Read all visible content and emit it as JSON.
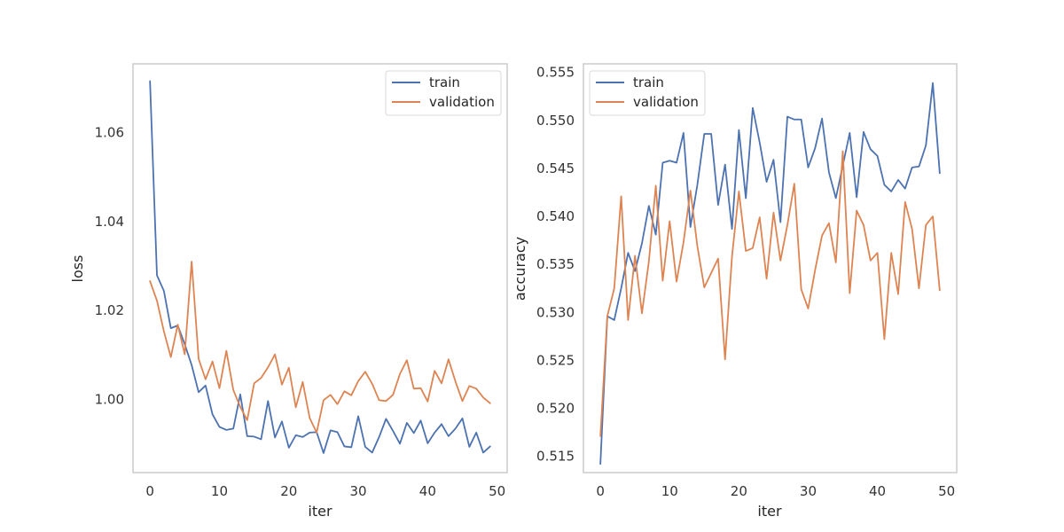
{
  "colors": {
    "train": "#4c72b0",
    "validation": "#dd8452",
    "frame": "#cccccc"
  },
  "chart_data": [
    {
      "type": "line",
      "title": "",
      "xlabel": "iter",
      "ylabel": "loss",
      "xlim": [
        -2.45,
        51.45
      ],
      "ylim": [
        0.9835,
        1.0755
      ],
      "xticks": [
        0,
        10,
        20,
        30,
        40,
        50
      ],
      "yticks": [
        1.0,
        1.02,
        1.04,
        1.06
      ],
      "ytick_labels": [
        "1.00",
        "1.02",
        "1.04",
        "1.06"
      ],
      "grid": false,
      "legend_position": "top-right",
      "legend": [
        "train",
        "validation"
      ],
      "x": [
        0,
        1,
        2,
        3,
        4,
        5,
        6,
        7,
        8,
        9,
        10,
        11,
        12,
        13,
        14,
        15,
        16,
        17,
        18,
        19,
        20,
        21,
        22,
        23,
        24,
        25,
        26,
        27,
        28,
        29,
        30,
        31,
        32,
        33,
        34,
        35,
        36,
        37,
        38,
        39,
        40,
        41,
        42,
        43,
        44,
        45,
        46,
        47,
        48,
        49
      ],
      "series": [
        {
          "name": "train",
          "color": "#4c72b0",
          "values": [
            1.0716,
            1.0279,
            1.0244,
            1.016,
            1.0166,
            1.0124,
            1.0077,
            1.0016,
            1.0031,
            0.9966,
            0.9938,
            0.9931,
            0.9934,
            1.0011,
            0.9917,
            0.9916,
            0.991,
            0.9996,
            0.9914,
            0.995,
            0.9891,
            0.9919,
            0.9915,
            0.9925,
            0.9926,
            0.9879,
            0.993,
            0.9926,
            0.9894,
            0.9892,
            0.9962,
            0.9893,
            0.988,
            0.9915,
            0.9956,
            0.9929,
            0.99,
            0.9947,
            0.9924,
            0.9952,
            0.9901,
            0.9925,
            0.9944,
            0.9917,
            0.9934,
            0.9957,
            0.9893,
            0.9925,
            0.988,
            0.9894
          ]
        },
        {
          "name": "validation",
          "color": "#dd8452",
          "values": [
            1.0266,
            1.0222,
            1.0153,
            1.0095,
            1.0168,
            1.0101,
            1.031,
            1.0091,
            1.0045,
            1.0085,
            1.0025,
            1.0109,
            1.0021,
            0.9983,
            0.9953,
            1.0036,
            1.0048,
            1.0072,
            1.0101,
            1.0033,
            1.0071,
            0.9982,
            1.0039,
            0.9958,
            0.9925,
            0.9998,
            1.001,
            0.9989,
            1.0018,
            1.0009,
            1.0041,
            1.0062,
            1.0035,
            0.9998,
            0.9996,
            1.001,
            1.0057,
            1.0088,
            1.0024,
            1.0025,
            0.9995,
            1.0064,
            1.0036,
            1.009,
            1.004,
            0.9996,
            1.003,
            1.0024,
            1.0004,
            0.9991
          ]
        }
      ]
    },
    {
      "type": "line",
      "title": "",
      "xlabel": "iter",
      "ylabel": "accuracy",
      "xlim": [
        -2.45,
        51.45
      ],
      "ylim": [
        0.5133,
        0.5559
      ],
      "xticks": [
        0,
        10,
        20,
        30,
        40,
        50
      ],
      "yticks": [
        0.515,
        0.52,
        0.525,
        0.53,
        0.535,
        0.54,
        0.545,
        0.55,
        0.555
      ],
      "ytick_labels": [
        "0.515",
        "0.520",
        "0.525",
        "0.530",
        "0.535",
        "0.540",
        "0.545",
        "0.550",
        "0.555"
      ],
      "grid": false,
      "legend_position": "top-left",
      "legend": [
        "train",
        "validation"
      ],
      "x": [
        0,
        1,
        2,
        3,
        4,
        5,
        6,
        7,
        8,
        9,
        10,
        11,
        12,
        13,
        14,
        15,
        16,
        17,
        18,
        19,
        20,
        21,
        22,
        23,
        24,
        25,
        26,
        27,
        28,
        29,
        30,
        31,
        32,
        33,
        34,
        35,
        36,
        37,
        38,
        39,
        40,
        41,
        42,
        43,
        44,
        45,
        46,
        47,
        48,
        49
      ],
      "series": [
        {
          "name": "train",
          "color": "#4c72b0",
          "values": [
            0.5142,
            0.5296,
            0.5292,
            0.5325,
            0.5362,
            0.5343,
            0.5372,
            0.5411,
            0.5381,
            0.5456,
            0.5458,
            0.5456,
            0.5487,
            0.5389,
            0.5433,
            0.5486,
            0.5486,
            0.5412,
            0.5454,
            0.5387,
            0.549,
            0.5419,
            0.5513,
            0.5477,
            0.5436,
            0.5459,
            0.5394,
            0.5504,
            0.5501,
            0.5501,
            0.5451,
            0.5471,
            0.5502,
            0.5446,
            0.5419,
            0.5453,
            0.5487,
            0.542,
            0.5488,
            0.547,
            0.5463,
            0.5433,
            0.5426,
            0.5438,
            0.5429,
            0.5451,
            0.5452,
            0.5474,
            0.5539,
            0.5445
          ]
        },
        {
          "name": "validation",
          "color": "#dd8452",
          "values": [
            0.5171,
            0.5296,
            0.5325,
            0.5421,
            0.5292,
            0.5359,
            0.5299,
            0.5353,
            0.5432,
            0.5333,
            0.5395,
            0.5332,
            0.5373,
            0.5427,
            0.5369,
            0.5326,
            0.5341,
            0.5356,
            0.5251,
            0.5358,
            0.5426,
            0.5364,
            0.5367,
            0.5399,
            0.5335,
            0.5404,
            0.5354,
            0.5391,
            0.5434,
            0.5324,
            0.5304,
            0.5344,
            0.538,
            0.5393,
            0.5352,
            0.5468,
            0.532,
            0.5406,
            0.5391,
            0.5354,
            0.5362,
            0.5272,
            0.5362,
            0.5319,
            0.5415,
            0.5387,
            0.5325,
            0.5391,
            0.54,
            0.5323
          ]
        }
      ]
    }
  ]
}
